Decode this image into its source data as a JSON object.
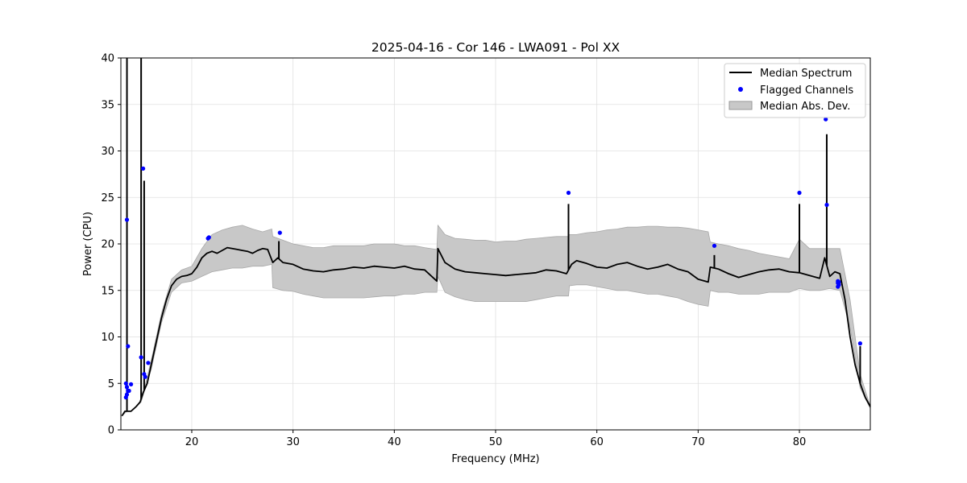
{
  "chart_data": {
    "type": "line",
    "title": "2025-04-16 - Cor 146 - LWA091 - Pol XX",
    "xlabel": "Frequency (MHz)",
    "ylabel": "Power (CPU)",
    "xlim": [
      13.0,
      87.0
    ],
    "ylim": [
      0,
      40
    ],
    "xticks": [
      20,
      30,
      40,
      50,
      60,
      70,
      80
    ],
    "yticks": [
      0,
      5,
      10,
      15,
      20,
      25,
      30,
      35,
      40
    ],
    "grid": true,
    "legend": {
      "position": "top-right",
      "entries": [
        {
          "label": "Median Spectrum",
          "kind": "line",
          "color": "#000000"
        },
        {
          "label": "Flagged Channels",
          "kind": "marker",
          "color": "#0000ff"
        },
        {
          "label": "Median Abs. Dev.",
          "kind": "patch",
          "color": "#c8c8c8"
        }
      ]
    },
    "series": [
      {
        "name": "Median Spectrum",
        "color": "#000000",
        "x": [
          13.1,
          13.4,
          13.6,
          14.0,
          14.5,
          14.9,
          15.2,
          15.6,
          16.0,
          16.5,
          17.0,
          17.5,
          18.0,
          18.5,
          19.0,
          19.5,
          20.0,
          20.5,
          21.0,
          21.5,
          22.0,
          22.5,
          23.0,
          23.5,
          24.0,
          24.5,
          25.0,
          25.5,
          26.0,
          26.5,
          27.0,
          27.5,
          28.0,
          28.5,
          29.0,
          30.0,
          31.0,
          32.0,
          33.0,
          34.0,
          35.0,
          36.0,
          37.0,
          38.0,
          39.0,
          40.0,
          41.0,
          42.0,
          43.0,
          44.2,
          44.3,
          45.0,
          46.0,
          47.0,
          48.0,
          49.0,
          50.0,
          51.0,
          52.0,
          53.0,
          54.0,
          55.0,
          56.0,
          57.0,
          57.5,
          58.0,
          59.0,
          60.0,
          61.0,
          62.0,
          63.0,
          64.0,
          65.0,
          66.0,
          67.0,
          68.0,
          69.0,
          70.0,
          71.0,
          71.2,
          72.0,
          73.0,
          74.0,
          75.0,
          76.0,
          77.0,
          78.0,
          79.0,
          80.0,
          81.0,
          82.0,
          82.5,
          83.0,
          83.5,
          84.0,
          84.5,
          85.0,
          85.5,
          86.0,
          86.5,
          87.0
        ],
        "y": [
          1.5,
          2.0,
          2.0,
          2.0,
          2.5,
          3.0,
          4.0,
          5.0,
          7.0,
          9.5,
          12.0,
          14.0,
          15.5,
          16.2,
          16.5,
          16.6,
          16.8,
          17.5,
          18.5,
          19.0,
          19.2,
          19.0,
          19.3,
          19.6,
          19.5,
          19.4,
          19.3,
          19.2,
          19.0,
          19.3,
          19.5,
          19.4,
          18.0,
          18.5,
          18.0,
          17.8,
          17.3,
          17.1,
          17.0,
          17.2,
          17.3,
          17.5,
          17.4,
          17.6,
          17.5,
          17.4,
          17.6,
          17.3,
          17.2,
          16.0,
          19.5,
          18.0,
          17.3,
          17.0,
          16.9,
          16.8,
          16.7,
          16.6,
          16.7,
          16.8,
          16.9,
          17.2,
          17.1,
          16.8,
          17.8,
          18.2,
          17.9,
          17.5,
          17.4,
          17.8,
          18.0,
          17.6,
          17.3,
          17.5,
          17.8,
          17.3,
          17.0,
          16.2,
          15.9,
          17.5,
          17.3,
          16.8,
          16.4,
          16.7,
          17.0,
          17.2,
          17.3,
          17.0,
          16.9,
          16.6,
          16.3,
          18.5,
          16.5,
          17.0,
          16.8,
          14.0,
          10.0,
          7.0,
          5.0,
          3.5,
          2.5
        ],
        "spikes": [
          {
            "x": 13.6,
            "y": 40.0
          },
          {
            "x": 15.0,
            "y": 40.0
          },
          {
            "x": 15.3,
            "y": 26.8
          },
          {
            "x": 28.6,
            "y": 20.3
          },
          {
            "x": 57.2,
            "y": 24.3
          },
          {
            "x": 71.6,
            "y": 18.8
          },
          {
            "x": 80.0,
            "y": 24.3
          },
          {
            "x": 82.7,
            "y": 31.8
          },
          {
            "x": 86.0,
            "y": 9.0
          }
        ]
      },
      {
        "name": "Median Abs. Dev.",
        "type": "band",
        "color": "#c8c8c8",
        "x": [
          13.1,
          13.6,
          14.0,
          15.0,
          16.0,
          17.0,
          18.0,
          19.0,
          20.0,
          21.0,
          22.0,
          23.0,
          24.0,
          25.0,
          26.0,
          27.0,
          27.9,
          28.0,
          29.0,
          30.0,
          31.0,
          32.0,
          33.0,
          34.0,
          35.0,
          36.0,
          37.0,
          38.0,
          39.0,
          40.0,
          41.0,
          42.0,
          43.0,
          44.2,
          44.3,
          45.0,
          46.0,
          47.0,
          48.0,
          49.0,
          50.0,
          51.0,
          52.0,
          53.0,
          54.0,
          55.0,
          56.0,
          57.2,
          57.3,
          58.0,
          59.0,
          60.0,
          61.0,
          62.0,
          63.0,
          64.0,
          65.0,
          66.0,
          67.0,
          68.0,
          69.0,
          70.0,
          71.0,
          71.2,
          72.0,
          73.0,
          74.0,
          75.0,
          76.0,
          77.0,
          78.0,
          79.0,
          80.0,
          81.0,
          82.0,
          83.0,
          84.0,
          85.0,
          86.0,
          87.0
        ],
        "lower": [
          1.5,
          2.0,
          2.0,
          3.0,
          6.5,
          11.5,
          14.8,
          15.8,
          16.0,
          16.5,
          17.0,
          17.2,
          17.4,
          17.4,
          17.6,
          17.6,
          17.8,
          15.3,
          15.0,
          14.9,
          14.6,
          14.4,
          14.2,
          14.2,
          14.2,
          14.2,
          14.2,
          14.3,
          14.4,
          14.4,
          14.6,
          14.6,
          14.8,
          14.8,
          16.5,
          14.8,
          14.3,
          14.0,
          13.8,
          13.8,
          13.8,
          13.8,
          13.8,
          13.8,
          14.0,
          14.2,
          14.4,
          14.4,
          15.5,
          15.6,
          15.6,
          15.4,
          15.2,
          15.0,
          15.0,
          14.8,
          14.6,
          14.6,
          14.4,
          14.2,
          13.8,
          13.5,
          13.3,
          15.0,
          14.8,
          14.8,
          14.6,
          14.6,
          14.6,
          14.8,
          14.8,
          14.8,
          15.2,
          15.0,
          15.0,
          15.2,
          15.0,
          11.0,
          4.5,
          2.3
        ],
        "upper": [
          1.5,
          2.0,
          2.0,
          3.0,
          7.5,
          12.5,
          16.2,
          17.2,
          17.6,
          19.5,
          21.0,
          21.5,
          21.8,
          22.0,
          21.6,
          21.3,
          21.6,
          20.8,
          20.4,
          20.0,
          19.8,
          19.6,
          19.6,
          19.8,
          19.8,
          19.8,
          19.8,
          20.0,
          20.0,
          20.0,
          19.8,
          19.8,
          19.6,
          19.4,
          22.0,
          21.0,
          20.6,
          20.5,
          20.4,
          20.4,
          20.2,
          20.3,
          20.3,
          20.5,
          20.6,
          20.7,
          20.8,
          20.8,
          21.0,
          21.0,
          21.2,
          21.3,
          21.5,
          21.6,
          21.8,
          21.8,
          21.9,
          21.9,
          21.8,
          21.8,
          21.7,
          21.5,
          21.3,
          20.2,
          20.0,
          19.8,
          19.5,
          19.3,
          19.0,
          18.8,
          18.6,
          18.4,
          20.5,
          19.5,
          19.5,
          19.5,
          19.5,
          14.0,
          6.0,
          2.5
        ]
      },
      {
        "name": "Flagged Channels",
        "type": "scatter",
        "color": "#0000ff",
        "x": [
          13.6,
          13.7,
          13.5,
          13.6,
          13.7,
          13.6,
          13.5,
          14.0,
          13.8,
          15.0,
          15.2,
          15.3,
          15.4,
          15.7,
          21.6,
          21.7,
          28.7,
          57.2,
          71.6,
          80.0,
          82.6,
          82.7,
          83.8,
          83.8,
          83.9,
          83.8,
          83.9,
          86.0
        ],
        "y": [
          22.6,
          9.0,
          5.0,
          4.6,
          4.2,
          3.8,
          3.5,
          4.9,
          4.2,
          7.8,
          28.1,
          6.0,
          5.7,
          7.2,
          20.6,
          20.7,
          21.2,
          25.5,
          19.8,
          25.5,
          33.4,
          24.2,
          16.0,
          15.8,
          15.6,
          15.4,
          15.9,
          9.3
        ]
      }
    ]
  }
}
